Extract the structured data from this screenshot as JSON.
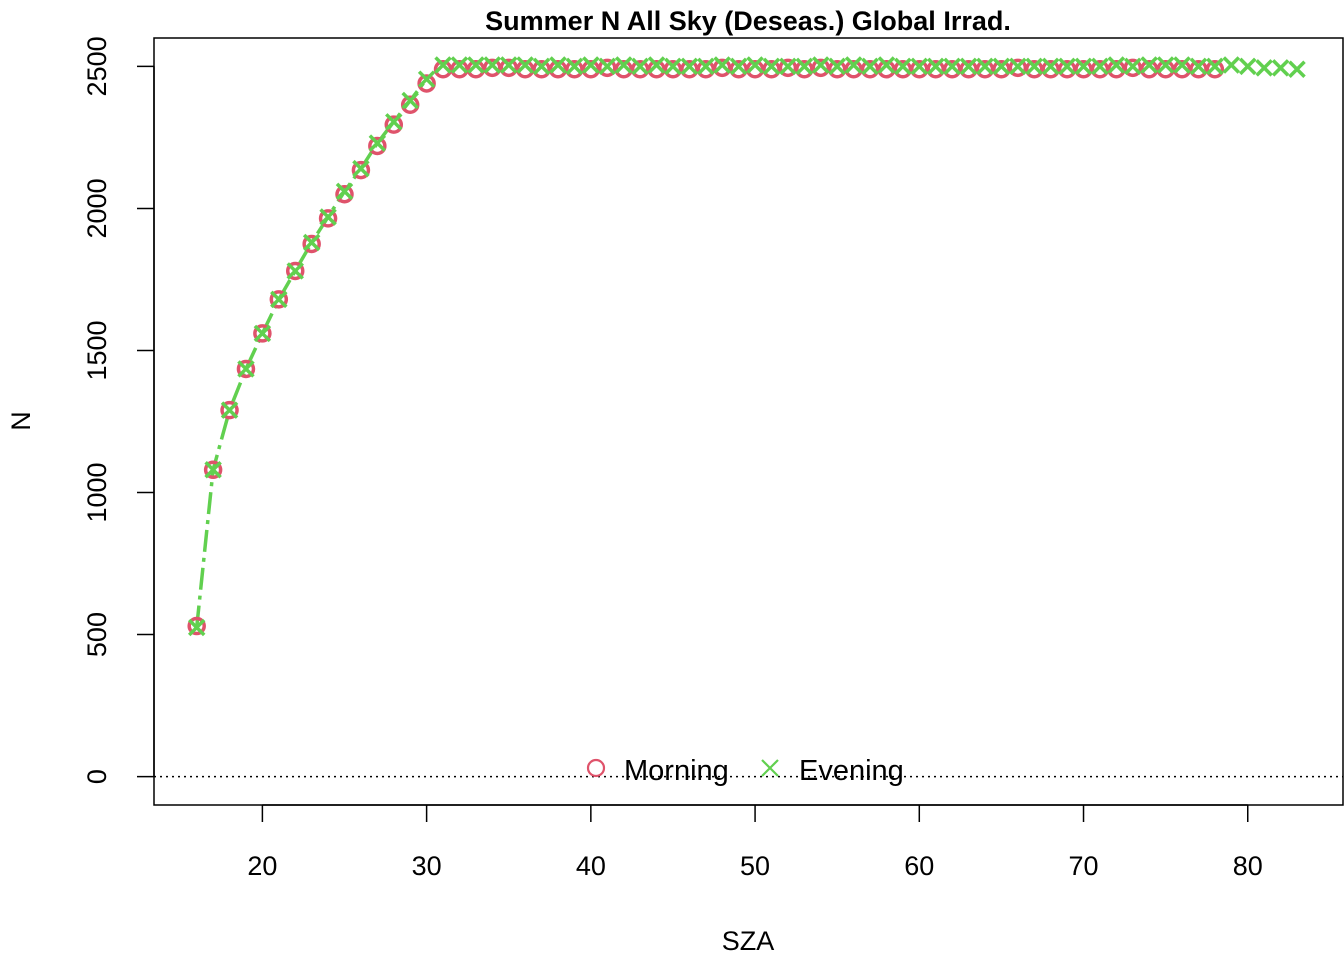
{
  "chart_data": {
    "type": "scatter",
    "title": "Summer N All Sky (Deseas.) Global Irrad.",
    "xlabel": "SZA",
    "ylabel": "N",
    "xlim": [
      13.4,
      85.8
    ],
    "ylim": [
      -100,
      2600
    ],
    "xticks": [
      20,
      30,
      40,
      50,
      60,
      70,
      80
    ],
    "yticks": [
      0,
      500,
      1000,
      1500,
      2000,
      2500
    ],
    "reference_line": {
      "y": 0,
      "style": "dotted"
    },
    "legend": {
      "placement": "bottom",
      "entries": [
        "Morning",
        "Evening"
      ]
    },
    "series": [
      {
        "name": "Morning",
        "marker": "circle",
        "color": "#DF536B",
        "x_start": 16,
        "x_step": 1,
        "y": [
          530,
          1080,
          1290,
          1435,
          1560,
          1680,
          1780,
          1875,
          1965,
          2050,
          2135,
          2220,
          2295,
          2365,
          2440,
          2490,
          2490,
          2490,
          2495,
          2495,
          2490,
          2490,
          2490,
          2490,
          2490,
          2495,
          2490,
          2490,
          2490,
          2490,
          2490,
          2490,
          2495,
          2490,
          2490,
          2490,
          2495,
          2490,
          2495,
          2490,
          2490,
          2490,
          2490,
          2490,
          2490,
          2490,
          2490,
          2490,
          2490,
          2490,
          2495,
          2490,
          2490,
          2490,
          2490,
          2490,
          2490,
          2495,
          2490,
          2490,
          2490,
          2490,
          2490
        ]
      },
      {
        "name": "Evening",
        "marker": "cross",
        "color": "#61D04F",
        "x_start": 16,
        "x_step": 1,
        "y": [
          525,
          1080,
          1290,
          1435,
          1560,
          1680,
          1780,
          1880,
          1970,
          2060,
          2140,
          2230,
          2305,
          2380,
          2455,
          2505,
          2505,
          2505,
          2505,
          2505,
          2505,
          2500,
          2505,
          2500,
          2505,
          2500,
          2505,
          2500,
          2505,
          2500,
          2500,
          2500,
          2505,
          2500,
          2505,
          2500,
          2500,
          2500,
          2505,
          2500,
          2505,
          2500,
          2505,
          2500,
          2500,
          2500,
          2500,
          2500,
          2500,
          2500,
          2500,
          2500,
          2500,
          2500,
          2500,
          2500,
          2505,
          2500,
          2505,
          2505,
          2505,
          2500,
          2500,
          2505,
          2500,
          2495,
          2495,
          2490
        ]
      }
    ]
  }
}
